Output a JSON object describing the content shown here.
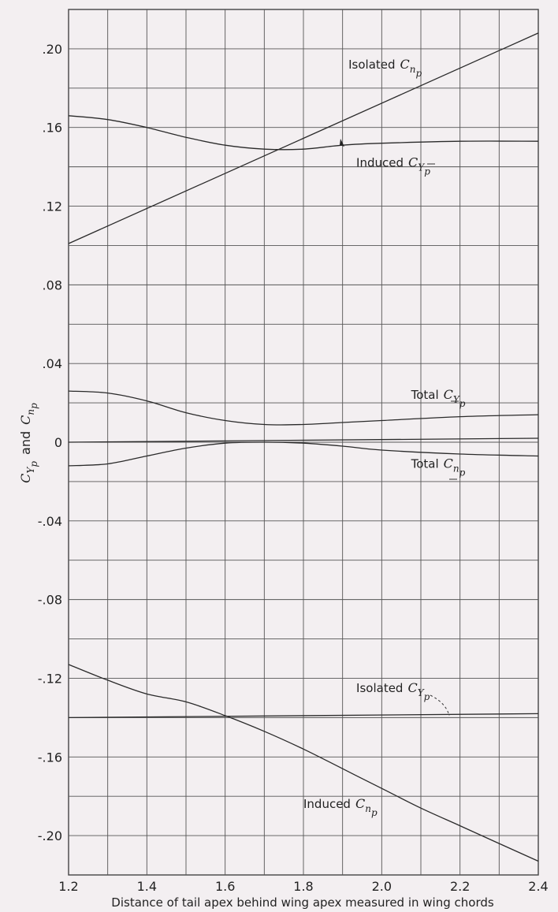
{
  "chart_data": {
    "type": "line",
    "title": "",
    "xlabel": "Distance of tail apex behind wing apex measured in wing chords",
    "ylabel": {
      "text": "and",
      "sym1": "C",
      "sub1_main": "Y",
      "sub1_sub": "p",
      "sym2": "C",
      "sub2_main": "n",
      "sub2_sub": "p"
    },
    "xlim": [
      1.2,
      2.4
    ],
    "ylim": [
      -0.22,
      0.22
    ],
    "grid": true,
    "legend": "none",
    "x_ticks": [
      {
        "value": 1.2,
        "label": "1.2"
      },
      {
        "value": 1.4,
        "label": "1.4"
      },
      {
        "value": 1.6,
        "label": "1.6"
      },
      {
        "value": 1.8,
        "label": "1.8"
      },
      {
        "value": 2.0,
        "label": "2.0"
      },
      {
        "value": 2.2,
        "label": "2.2"
      },
      {
        "value": 2.4,
        "label": "2.4"
      }
    ],
    "y_ticks": [
      {
        "value": 0.2,
        "label": ".20"
      },
      {
        "value": 0.16,
        "label": ".16"
      },
      {
        "value": 0.12,
        "label": ".12"
      },
      {
        "value": 0.08,
        "label": ".08"
      },
      {
        "value": 0.04,
        "label": ".04"
      },
      {
        "value": 0.0,
        "label": "0"
      },
      {
        "value": -0.04,
        "label": "-.04"
      },
      {
        "value": -0.08,
        "label": "-.08"
      },
      {
        "value": -0.12,
        "label": "-.12"
      },
      {
        "value": -0.16,
        "label": "-.16"
      },
      {
        "value": -0.2,
        "label": "-.20"
      }
    ],
    "series": [
      {
        "key": "isolated_cnp",
        "x": [
          1.2,
          2.4
        ],
        "y": [
          0.101,
          0.208
        ]
      },
      {
        "key": "induced_cyp",
        "x": [
          1.2,
          1.3,
          1.4,
          1.5,
          1.6,
          1.7,
          1.8,
          1.9,
          2.0,
          2.2,
          2.4
        ],
        "y": [
          0.166,
          0.164,
          0.16,
          0.155,
          0.151,
          0.149,
          0.149,
          0.151,
          0.152,
          0.153,
          0.153
        ]
      },
      {
        "key": "total_cyp",
        "x": [
          1.2,
          1.3,
          1.4,
          1.5,
          1.6,
          1.7,
          1.8,
          1.9,
          2.0,
          2.2,
          2.4
        ],
        "y": [
          0.026,
          0.025,
          0.021,
          0.015,
          0.011,
          0.009,
          0.009,
          0.01,
          0.011,
          0.013,
          0.014
        ]
      },
      {
        "key": "total_cnp",
        "x": [
          1.2,
          1.3,
          1.4,
          1.5,
          1.6,
          1.7,
          1.8,
          1.9,
          2.0,
          2.2,
          2.4
        ],
        "y": [
          -0.012,
          -0.011,
          -0.007,
          -0.003,
          -0.0005,
          0.0,
          -0.0005,
          -0.002,
          -0.004,
          -0.006,
          -0.007
        ]
      },
      {
        "key": "zero_line",
        "x": [
          1.2,
          2.4
        ],
        "y": [
          0.0,
          0.002
        ]
      },
      {
        "key": "isolated_cyp",
        "x": [
          1.2,
          2.4
        ],
        "y": [
          -0.14,
          -0.138
        ]
      },
      {
        "key": "induced_cnp",
        "x": [
          1.2,
          1.3,
          1.4,
          1.5,
          1.6,
          1.7,
          1.8,
          1.9,
          2.0,
          2.1,
          2.2,
          2.3,
          2.4
        ],
        "y": [
          -0.113,
          -0.121,
          -0.128,
          -0.132,
          -0.139,
          -0.147,
          -0.156,
          -0.166,
          -0.176,
          -0.186,
          -0.195,
          -0.204,
          -0.213
        ]
      }
    ],
    "annotations": [
      {
        "key": "isolated_cnp",
        "label": "Isolated",
        "sym": "C",
        "sub_main": "n",
        "sub_sub": "p",
        "x": 1.915,
        "y": 0.19
      },
      {
        "key": "induced_cyp",
        "label": "Induced",
        "sym": "C",
        "sub_main": "Y",
        "sub_sub": "p",
        "x": 1.935,
        "y": 0.14
      },
      {
        "key": "total_cyp",
        "label": "Total",
        "sym": "C",
        "sub_main": "Y",
        "sub_sub": "p",
        "x": 2.075,
        "y": 0.022
      },
      {
        "key": "total_cnp",
        "label": "Total",
        "sym": "C",
        "sub_main": "n",
        "sub_sub": "p",
        "x": 2.075,
        "y": -0.013
      },
      {
        "key": "isolated_cyp",
        "label": "Isolated",
        "sym": "C",
        "sub_main": "Y",
        "sub_sub": "p",
        "x": 1.935,
        "y": -0.127
      },
      {
        "key": "induced_cnp",
        "label": "Induced",
        "sym": "C",
        "sub_main": "n",
        "sub_sub": "p",
        "x": 1.8,
        "y": -0.186
      }
    ]
  }
}
